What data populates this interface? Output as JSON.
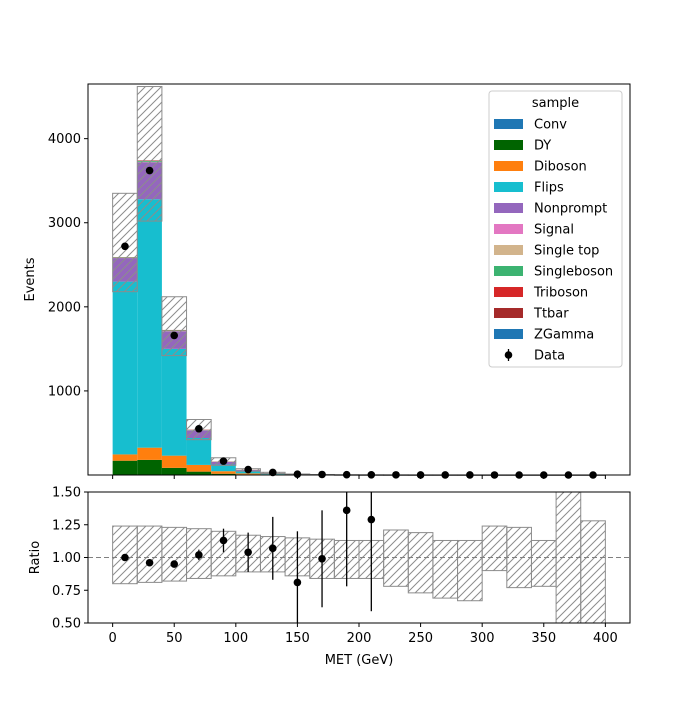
{
  "chart_data": [
    {
      "type": "bar",
      "stacked": true,
      "ylabel": "Events",
      "xlim": [
        -20,
        420
      ],
      "ylim": [
        0,
        4650
      ],
      "yticks": [
        1000,
        2000,
        3000,
        4000
      ],
      "bin_edges": [
        0,
        20,
        40,
        60,
        80,
        100,
        120,
        140,
        160,
        180,
        200,
        220,
        240,
        260,
        280,
        300,
        320,
        340,
        360,
        380,
        400
      ],
      "series": [
        {
          "name": "Conv",
          "color": "#1f77b4",
          "values": [
            0,
            0,
            0,
            0,
            0,
            0,
            0,
            0,
            0,
            0,
            0,
            0,
            0,
            0,
            0,
            0,
            0,
            0,
            0,
            0
          ]
        },
        {
          "name": "DY",
          "color": "#006400",
          "values": [
            170,
            180,
            85,
            40,
            15,
            7,
            3,
            1.5,
            1,
            0.5,
            0.3,
            0.2,
            0.1,
            0.1,
            0.1,
            0,
            0,
            0,
            0,
            0
          ]
        },
        {
          "name": "Diboson",
          "color": "#ff7f0e",
          "values": [
            75,
            145,
            145,
            80,
            30,
            12,
            5,
            2,
            1,
            0.5,
            0.3,
            0.2,
            0.1,
            0.1,
            0.1,
            0,
            0,
            0,
            0,
            0
          ]
        },
        {
          "name": "Flips",
          "color": "#17becf",
          "values": [
            2055,
            2955,
            1270,
            320,
            80,
            28,
            10,
            4,
            2,
            1,
            0.5,
            0.3,
            0.2,
            0.1,
            0.1,
            0,
            0,
            0,
            0,
            0
          ]
        },
        {
          "name": "Nonprompt",
          "color": "#9467bd",
          "values": [
            280,
            440,
            210,
            90,
            30,
            12,
            5,
            2,
            1,
            0.5,
            0.3,
            0.2,
            0.1,
            0.1,
            0.1,
            0,
            0,
            0,
            0,
            0
          ]
        },
        {
          "name": "Signal",
          "color": "#e377c2",
          "values": [
            0,
            0,
            0,
            0,
            0,
            0,
            0,
            0,
            0,
            0,
            0,
            0,
            0,
            0,
            0,
            0,
            0,
            0,
            0,
            0
          ]
        },
        {
          "name": "Single top",
          "color": "#d2b48c",
          "values": [
            3,
            5,
            4,
            3,
            2,
            1,
            0.5,
            0.2,
            0.1,
            0,
            0,
            0,
            0,
            0,
            0,
            0,
            0,
            0,
            0,
            0
          ]
        },
        {
          "name": "Singleboson",
          "color": "#3cb371",
          "values": [
            5,
            10,
            5,
            2,
            1,
            0.5,
            0.2,
            0.1,
            0,
            0,
            0,
            0,
            0,
            0,
            0,
            0,
            0,
            0,
            0,
            0
          ]
        },
        {
          "name": "Triboson",
          "color": "#d62728",
          "values": [
            1,
            2,
            2,
            1,
            1,
            0.5,
            0.2,
            0.1,
            0,
            0,
            0,
            0,
            0,
            0,
            0,
            0,
            0,
            0,
            0,
            0
          ]
        },
        {
          "name": "Ttbar",
          "color": "#a52a2a",
          "values": [
            3,
            5,
            4,
            3,
            2,
            1,
            0.5,
            0.2,
            0.1,
            0,
            0,
            0,
            0,
            0,
            0,
            0,
            0,
            0,
            0,
            0
          ]
        },
        {
          "name": "ZGamma",
          "color": "#1f77b4",
          "values": [
            0,
            0,
            0,
            0,
            0,
            0,
            0,
            0,
            0,
            0,
            0,
            0,
            0,
            0,
            0,
            0,
            0,
            0,
            0,
            0
          ]
        }
      ],
      "uncertainty_band": {
        "up": [
          3350,
          4620,
          2120,
          660,
          205,
          75,
          32,
          12,
          6,
          3,
          1.6,
          1,
          0.5,
          0.4,
          0.3,
          0.2,
          0.1,
          0.1,
          0.1,
          0.05
        ],
        "down": [
          2180,
          3020,
          1420,
          420,
          115,
          45,
          18,
          7,
          3.5,
          1.8,
          1,
          0.6,
          0.3,
          0.2,
          0.15,
          0.1,
          0.05,
          0.05,
          0.03,
          0.02
        ]
      },
      "data_points": {
        "name": "Data",
        "x": [
          10,
          30,
          50,
          70,
          90,
          110,
          130,
          150,
          170,
          190,
          210,
          230,
          250,
          270,
          290,
          310,
          330,
          350,
          370,
          390
        ],
        "y": [
          2720,
          3620,
          1660,
          550,
          165,
          65,
          30,
          10,
          6,
          4,
          2.5,
          1.5,
          0.5,
          0.3,
          0.2,
          0.1,
          0,
          0,
          0,
          0
        ]
      },
      "legend": {
        "title": "sample",
        "placement": "top-right"
      }
    },
    {
      "type": "scatter",
      "xlabel": "MET (GeV)",
      "ylabel": "Ratio",
      "xlim": [
        -20,
        420
      ],
      "ylim": [
        0.5,
        1.5
      ],
      "xticks": [
        0,
        50,
        100,
        150,
        200,
        250,
        300,
        350,
        400
      ],
      "yticks": [
        0.5,
        0.75,
        1.0,
        1.25,
        1.5
      ],
      "ytick_labels": [
        "0.50",
        "0.75",
        "1.00",
        "1.25",
        "1.50"
      ],
      "reference_line": 1.0,
      "band": {
        "bin_edges": [
          0,
          20,
          40,
          60,
          80,
          100,
          120,
          140,
          160,
          180,
          200,
          220,
          240,
          260,
          280,
          300,
          320,
          340,
          360,
          380,
          400
        ],
        "up": [
          1.24,
          1.24,
          1.23,
          1.22,
          1.2,
          1.17,
          1.16,
          1.15,
          1.14,
          1.13,
          1.13,
          1.21,
          1.19,
          1.13,
          1.13,
          1.24,
          1.23,
          1.13,
          1.5,
          1.28
        ],
        "down": [
          0.8,
          0.81,
          0.82,
          0.84,
          0.86,
          0.89,
          0.89,
          0.86,
          0.84,
          0.84,
          0.84,
          0.78,
          0.73,
          0.69,
          0.67,
          0.9,
          0.77,
          0.78,
          0.5,
          0.5
        ]
      },
      "points": {
        "x": [
          10,
          30,
          50,
          70,
          90,
          110,
          130,
          150,
          170,
          190,
          210
        ],
        "y": [
          1.0,
          0.96,
          0.95,
          1.02,
          1.13,
          1.04,
          1.07,
          0.81,
          0.99,
          1.36,
          1.29
        ],
        "err": [
          0.02,
          0.02,
          0.025,
          0.04,
          0.09,
          0.15,
          0.24,
          0.39,
          0.37,
          0.58,
          0.7
        ]
      }
    }
  ]
}
